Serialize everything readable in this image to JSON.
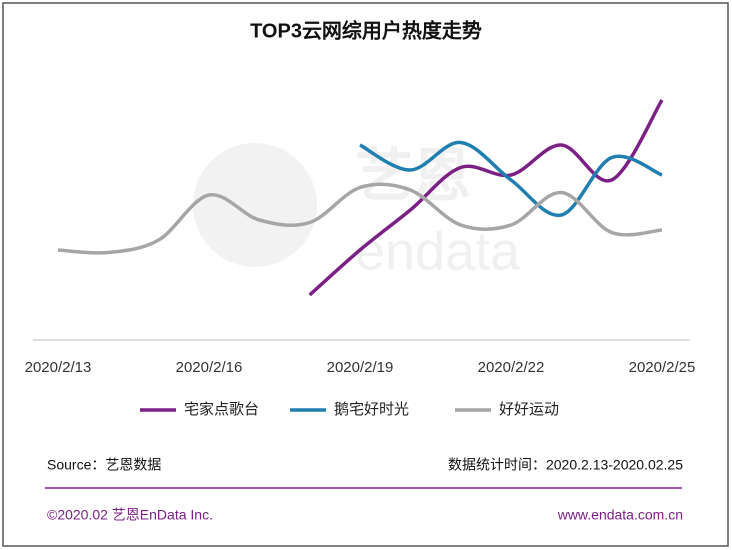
{
  "chart_data": {
    "type": "line",
    "title": "TOP3云网综用户热度走势",
    "categories": [
      "2020/2/13",
      null,
      null,
      "2020/2/16",
      null,
      null,
      "2020/2/19",
      null,
      null,
      "2020/2/22",
      null,
      null,
      "2020/2/25"
    ],
    "series": [
      {
        "name": "宅家点歌台",
        "color": "#7b2085",
        "values": [
          null,
          null,
          null,
          null,
          null,
          18,
          36,
          52,
          69,
          66,
          78,
          64,
          96
        ]
      },
      {
        "name": "鹅宅好时光",
        "color": "#1f7fb0",
        "values": [
          null,
          null,
          null,
          null,
          null,
          null,
          78,
          68,
          79,
          64,
          50,
          73,
          66
        ]
      },
      {
        "name": "好好运动",
        "color": "#a6a6a6",
        "values": [
          36,
          35,
          40,
          58,
          48,
          47,
          61,
          60,
          46,
          46,
          59,
          43,
          44
        ]
      }
    ],
    "ylim": [
      0,
      100
    ],
    "watermark": [
      "艺恩",
      "endata"
    ],
    "source": "Source：艺恩数据",
    "period": "数据统计时间：2020.2.13-2020.02.25",
    "copyright": "©2020.02 艺恩EnData Inc.",
    "website": "www.endata.com.cn"
  }
}
